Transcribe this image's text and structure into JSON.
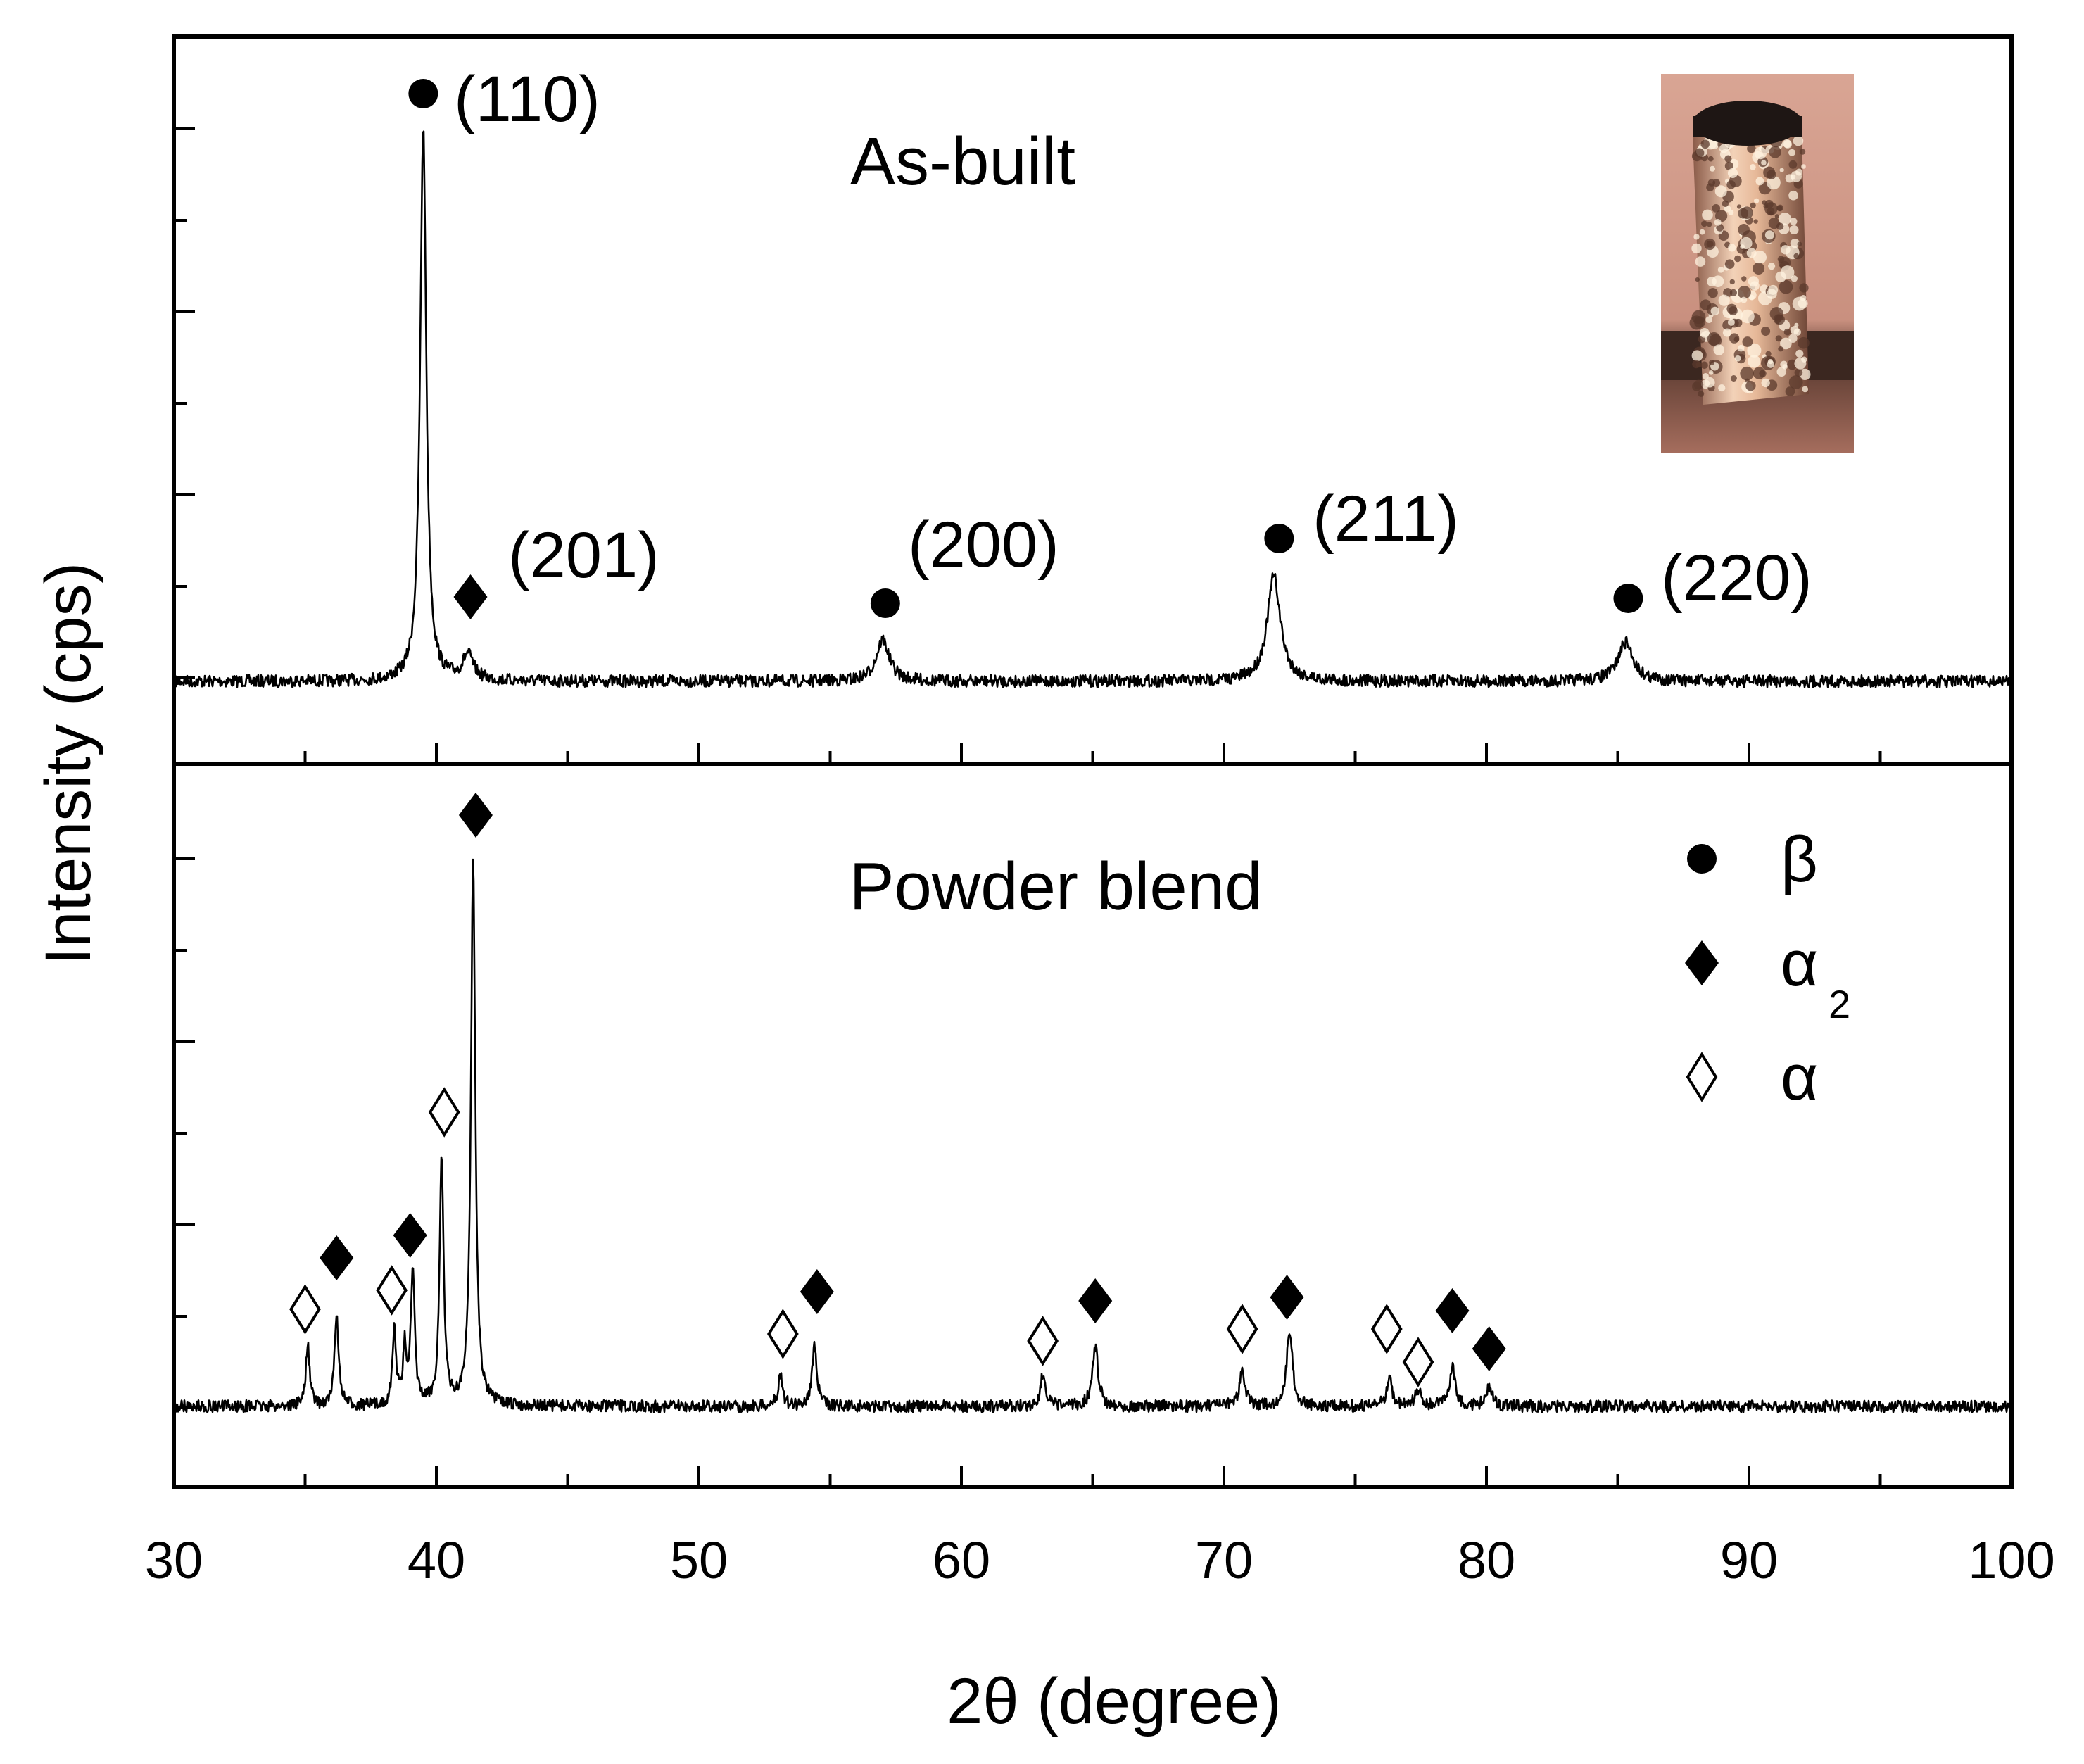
{
  "chart_data": {
    "type": "line",
    "xlabel": "2θ (degree)",
    "ylabel": "Intensity (cps)",
    "xlim": [
      30,
      100
    ],
    "x_ticks": [
      30,
      40,
      50,
      60,
      70,
      80,
      90,
      100
    ],
    "x_tick_labels": [
      "30",
      "40",
      "50",
      "60",
      "70",
      "80",
      "90",
      "100"
    ],
    "y_tick_labels_shown": false,
    "grid": false,
    "legend_position": "lower-panel top-right",
    "legend": [
      {
        "symbol": "filled-circle",
        "label": "β",
        "subscript": ""
      },
      {
        "symbol": "filled-diamond",
        "label": "α",
        "subscript": "2"
      },
      {
        "symbol": "open-diamond",
        "label": "α",
        "subscript": ""
      }
    ],
    "panels": [
      {
        "name": "As-built",
        "position": "top",
        "baseline": 0.04,
        "peaks": [
          {
            "x": 39.5,
            "height": 1.0,
            "width": 0.14
          },
          {
            "x": 41.2,
            "height": 0.045,
            "width": 0.25
          },
          {
            "x": 57.0,
            "height": 0.075,
            "width": 0.3
          },
          {
            "x": 71.9,
            "height": 0.19,
            "width": 0.3
          },
          {
            "x": 85.3,
            "height": 0.07,
            "width": 0.35
          }
        ],
        "markers": [
          {
            "x": 39.5,
            "symbol": "filled-circle",
            "label": "(110)"
          },
          {
            "x": 41.3,
            "symbol": "filled-diamond",
            "label": "(201)"
          },
          {
            "x": 57.1,
            "symbol": "filled-circle",
            "label": "(200)"
          },
          {
            "x": 72.1,
            "symbol": "filled-circle",
            "label": "(211)"
          },
          {
            "x": 85.4,
            "symbol": "filled-circle",
            "label": "(220)"
          }
        ],
        "inset": {
          "type": "photo",
          "subject": "as-built sample",
          "position": "top-right"
        }
      },
      {
        "name": "Powder blend",
        "position": "bottom",
        "baseline": 0.04,
        "peaks": [
          {
            "x": 35.1,
            "height": 0.11,
            "width": 0.09
          },
          {
            "x": 36.2,
            "height": 0.17,
            "width": 0.09
          },
          {
            "x": 38.4,
            "height": 0.14,
            "width": 0.08
          },
          {
            "x": 38.8,
            "height": 0.1,
            "width": 0.08
          },
          {
            "x": 39.1,
            "height": 0.24,
            "width": 0.09
          },
          {
            "x": 40.2,
            "height": 0.46,
            "width": 0.09
          },
          {
            "x": 41.4,
            "height": 1.0,
            "width": 0.1
          },
          {
            "x": 53.1,
            "height": 0.06,
            "width": 0.1
          },
          {
            "x": 54.4,
            "height": 0.11,
            "width": 0.11
          },
          {
            "x": 63.1,
            "height": 0.06,
            "width": 0.11
          },
          {
            "x": 65.1,
            "height": 0.11,
            "width": 0.13
          },
          {
            "x": 70.7,
            "height": 0.07,
            "width": 0.12
          },
          {
            "x": 72.5,
            "height": 0.14,
            "width": 0.13
          },
          {
            "x": 76.3,
            "height": 0.05,
            "width": 0.13
          },
          {
            "x": 77.4,
            "height": 0.03,
            "width": 0.13
          },
          {
            "x": 78.7,
            "height": 0.07,
            "width": 0.14
          },
          {
            "x": 80.1,
            "height": 0.035,
            "width": 0.14
          }
        ],
        "markers": [
          {
            "x": 35.0,
            "symbol": "open-diamond"
          },
          {
            "x": 36.2,
            "symbol": "filled-diamond"
          },
          {
            "x": 38.3,
            "symbol": "open-diamond"
          },
          {
            "x": 39.0,
            "symbol": "filled-diamond"
          },
          {
            "x": 40.3,
            "symbol": "open-diamond"
          },
          {
            "x": 41.5,
            "symbol": "filled-diamond"
          },
          {
            "x": 53.2,
            "symbol": "open-diamond"
          },
          {
            "x": 54.5,
            "symbol": "filled-diamond"
          },
          {
            "x": 63.1,
            "symbol": "open-diamond"
          },
          {
            "x": 65.1,
            "symbol": "filled-diamond"
          },
          {
            "x": 70.7,
            "symbol": "open-diamond"
          },
          {
            "x": 72.4,
            "symbol": "filled-diamond"
          },
          {
            "x": 76.2,
            "symbol": "open-diamond"
          },
          {
            "x": 77.4,
            "symbol": "open-diamond"
          },
          {
            "x": 78.7,
            "symbol": "filled-diamond"
          },
          {
            "x": 80.1,
            "symbol": "filled-diamond"
          }
        ]
      }
    ]
  }
}
